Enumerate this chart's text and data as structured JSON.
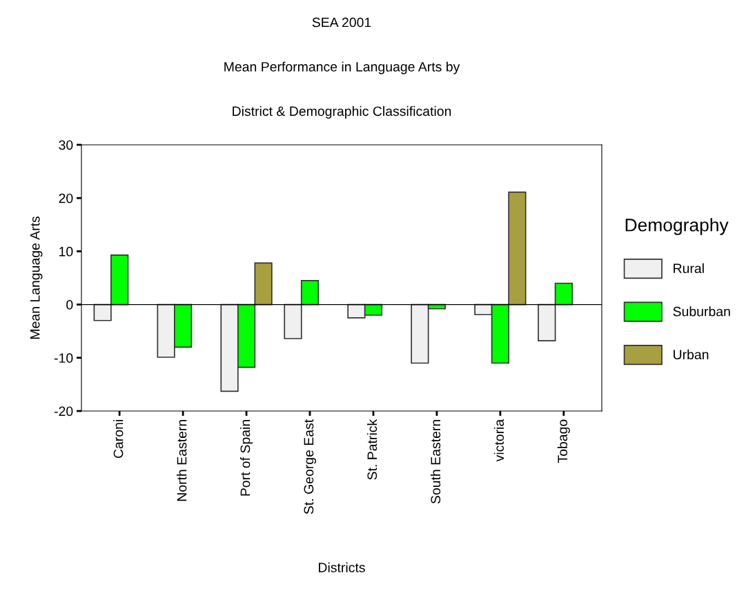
{
  "chart_data": {
    "type": "bar",
    "title": "SEA 2001\n\nMean Performance in Language Arts by\n\nDistrict & Demographic Classification",
    "xlabel": "Districts",
    "ylabel": "Mean Language Arts",
    "legend_title": "Demography",
    "categories": [
      "Caroni",
      "North Eastern",
      "Port of Spain",
      "St. George East",
      "St. Patrick",
      "South Eastern",
      "victoria",
      "Tobago"
    ],
    "series": [
      {
        "name": "Rural",
        "color": "#f0f0f0",
        "values": [
          -3.0,
          -9.9,
          -16.3,
          -6.4,
          -2.5,
          -11.0,
          -1.9,
          -6.8
        ]
      },
      {
        "name": "Suburban",
        "color": "#00ff00",
        "values": [
          9.3,
          -8.0,
          -11.8,
          4.5,
          -2.0,
          -0.8,
          -11.0,
          4.0
        ]
      },
      {
        "name": "Urban",
        "color": "#a8a040",
        "values": [
          null,
          null,
          7.8,
          null,
          null,
          null,
          21.1,
          null
        ]
      }
    ],
    "ylim": [
      -20,
      30
    ],
    "yticks": [
      -20,
      -10,
      0,
      10,
      20,
      30
    ],
    "ref_lines": [
      {
        "axis": "y",
        "value": 0,
        "color": "#000000"
      }
    ],
    "grid": false,
    "legend": "right"
  }
}
